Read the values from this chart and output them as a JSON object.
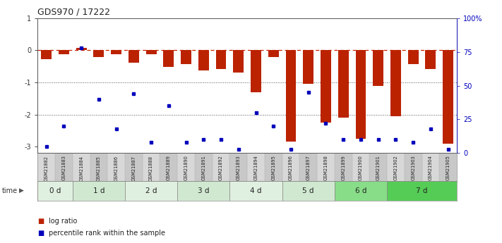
{
  "title": "GDS970 / 17222",
  "samples": [
    "GSM21882",
    "GSM21883",
    "GSM21884",
    "GSM21885",
    "GSM21886",
    "GSM21887",
    "GSM21888",
    "GSM21889",
    "GSM21890",
    "GSM21891",
    "GSM21892",
    "GSM21893",
    "GSM21894",
    "GSM21895",
    "GSM21896",
    "GSM21897",
    "GSM21898",
    "GSM21899",
    "GSM21900",
    "GSM21901",
    "GSM21902",
    "GSM21903",
    "GSM21904",
    "GSM21905"
  ],
  "log_ratio": [
    -0.28,
    -0.12,
    0.07,
    -0.2,
    -0.13,
    -0.38,
    -0.13,
    -0.52,
    -0.42,
    -0.62,
    -0.58,
    -0.7,
    -1.3,
    -0.22,
    -2.85,
    -1.05,
    -2.25,
    -2.1,
    -2.75,
    -1.1,
    -2.05,
    -0.42,
    -0.58,
    -2.9
  ],
  "percentile_rank": [
    5,
    20,
    78,
    40,
    18,
    44,
    8,
    35,
    8,
    10,
    10,
    3,
    30,
    20,
    3,
    45,
    22,
    10,
    10,
    10,
    10,
    8,
    18,
    3
  ],
  "groups": [
    {
      "label": "0 d",
      "start": 0,
      "end": 2,
      "color": "#e0f0e0"
    },
    {
      "label": "1 d",
      "start": 2,
      "end": 5,
      "color": "#d0e8d0"
    },
    {
      "label": "2 d",
      "start": 5,
      "end": 8,
      "color": "#e0f0e0"
    },
    {
      "label": "3 d",
      "start": 8,
      "end": 11,
      "color": "#d0e8d0"
    },
    {
      "label": "4 d",
      "start": 11,
      "end": 14,
      "color": "#e0f0e0"
    },
    {
      "label": "5 d",
      "start": 14,
      "end": 17,
      "color": "#d0e8d0"
    },
    {
      "label": "6 d",
      "start": 17,
      "end": 20,
      "color": "#88dd88"
    },
    {
      "label": "7 d",
      "start": 20,
      "end": 24,
      "color": "#55cc55"
    }
  ],
  "bar_color": "#bb2200",
  "dot_color": "#0000bb",
  "hline_color": "#cc2200",
  "dotted_line_color": "#555555",
  "ylim_left": [
    -3.2,
    1.0
  ],
  "ylim_right": [
    0,
    100
  ],
  "yticks_left": [
    1,
    0,
    -1,
    -2,
    -3
  ],
  "ytick_left_labels": [
    "1",
    "0",
    "-1",
    "-2",
    "-3"
  ],
  "yticks_right": [
    0,
    25,
    50,
    75,
    100
  ],
  "ytick_right_labels": [
    "0",
    "25",
    "50",
    "75",
    "100%"
  ],
  "hline_y": 0,
  "dotted_lines": [
    -1,
    -2
  ],
  "legend_bar_label": "log ratio",
  "legend_dot_label": "percentile rank within the sample",
  "time_label": "time",
  "background_color": "#ffffff",
  "header_alt_colors": [
    "#d8d8d8",
    "#c8c8c8"
  ]
}
